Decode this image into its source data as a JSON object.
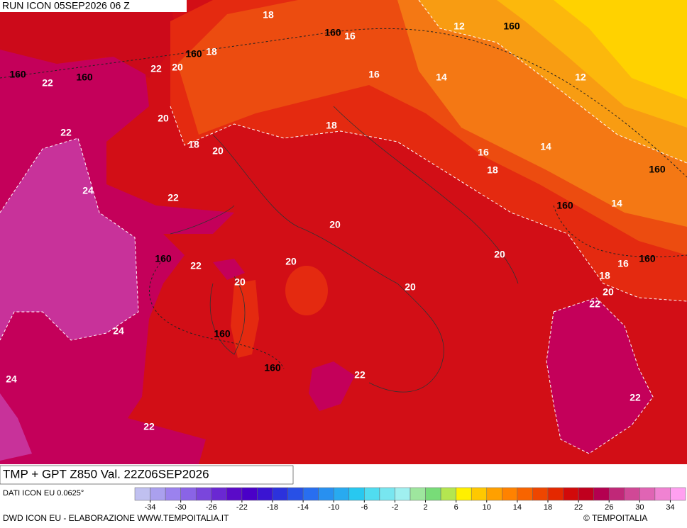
{
  "header": {
    "run": "RUN ICON 05SEP2026 06 Z"
  },
  "map": {
    "temperature_labels": [
      18,
      16,
      12,
      18,
      22,
      20,
      22,
      16,
      14,
      12,
      20,
      22,
      18,
      18,
      20,
      16,
      14,
      18,
      24,
      22,
      14,
      20,
      20,
      20,
      22,
      16,
      18,
      20,
      20,
      20,
      22,
      24,
      22,
      24,
      22,
      22
    ],
    "height_labels": [
      160,
      160,
      160,
      160,
      160,
      160,
      160,
      160,
      160,
      160,
      160
    ]
  },
  "footer": {
    "title": "TMP + GPT Z850 Val. 22Z06SEP2026",
    "source": "DATI ICON EU 0.0625°",
    "credit": "DWD ICON EU - ELABORAZIONE WWW.TEMPOITALIA.IT",
    "copyright": "© TEMPOITALIA"
  },
  "legend": {
    "range": [
      -36,
      36
    ],
    "step": 2,
    "ticks": [
      -34,
      -30,
      -26,
      -22,
      -18,
      -14,
      -10,
      -6,
      -2,
      2,
      6,
      10,
      14,
      18,
      22,
      26,
      30,
      34
    ],
    "colors": [
      "#c0c0f0",
      "#aaa0ee",
      "#9b82ee",
      "#8a64e6",
      "#7a46dc",
      "#6a28d2",
      "#5a0ac8",
      "#4a00c8",
      "#3a14d2",
      "#2c32dc",
      "#2850e6",
      "#286ef0",
      "#2890f0",
      "#28aaf0",
      "#28c8f0",
      "#50dcf0",
      "#78e6f0",
      "#a0f0f0",
      "#9ee69e",
      "#78dc78",
      "#b4e650",
      "#fff000",
      "#ffc800",
      "#ffa000",
      "#ff8200",
      "#f86400",
      "#ee4600",
      "#e42800",
      "#d20a0a",
      "#c0001e",
      "#b40050",
      "#c02878",
      "#d04896",
      "#e064b4",
      "#f082d2",
      "#ffa0f0"
    ]
  }
}
